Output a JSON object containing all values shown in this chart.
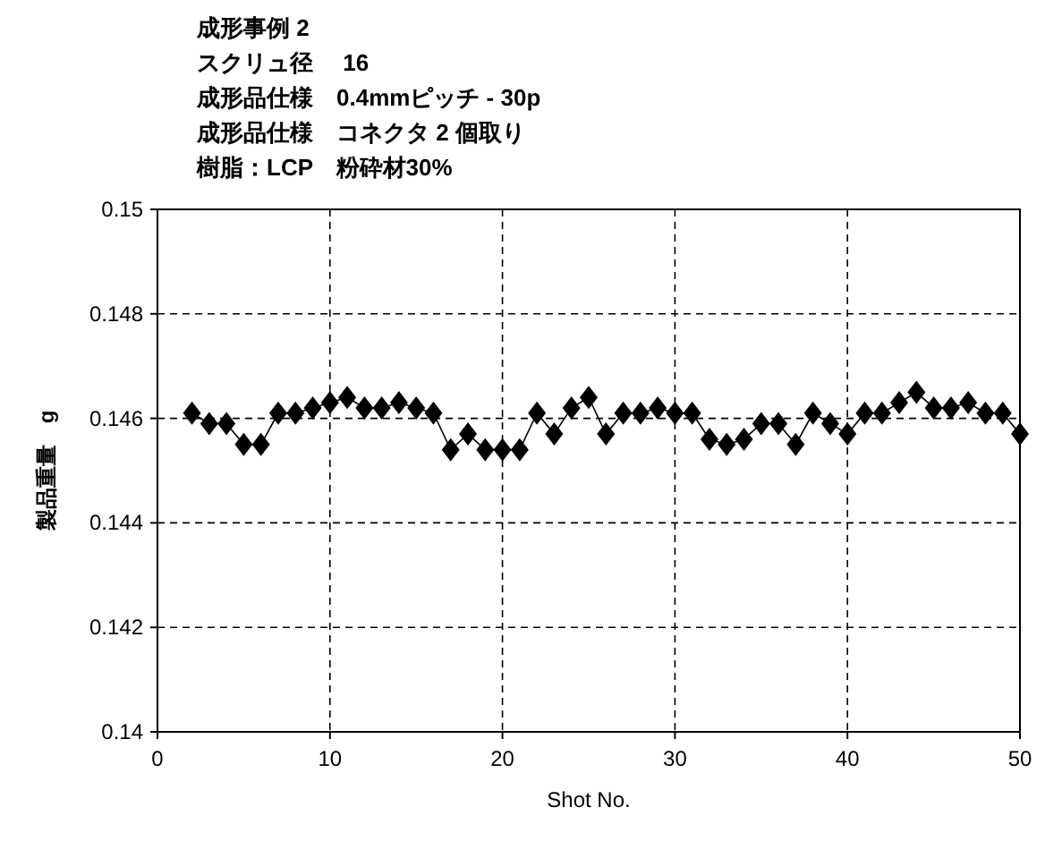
{
  "chart_data": {
    "type": "line",
    "title": "成形事例 2",
    "annotations": [
      "スクリュ径　 16",
      "成形品仕様　0.4mmピッチ - 30p",
      "成形品仕様　コネクタ 2 個取り",
      "樹脂：LCP　粉砕材30%"
    ],
    "xlabel": "Shot No.",
    "ylabel": "製品重量　g",
    "x": [
      2,
      3,
      4,
      5,
      6,
      7,
      8,
      9,
      10,
      11,
      12,
      13,
      14,
      15,
      16,
      17,
      18,
      19,
      20,
      21,
      22,
      23,
      24,
      25,
      26,
      27,
      28,
      29,
      30,
      31,
      32,
      33,
      34,
      35,
      36,
      37,
      38,
      39,
      40,
      41,
      42,
      43,
      44,
      45,
      46,
      47,
      48,
      49,
      50
    ],
    "series": [
      {
        "color": "#000000",
        "values": [
          0.1461,
          0.1459,
          0.1459,
          0.1455,
          0.1455,
          0.1461,
          0.1461,
          0.1462,
          0.1463,
          0.1464,
          0.1462,
          0.1462,
          0.1463,
          0.1462,
          0.1461,
          0.1454,
          0.1457,
          0.1454,
          0.1454,
          0.1454,
          0.1461,
          0.1457,
          0.1462,
          0.1464,
          0.1457,
          0.1461,
          0.1461,
          0.1462,
          0.1461,
          0.1461,
          0.1456,
          0.1455,
          0.1456,
          0.1459,
          0.1459,
          0.1455,
          0.1461,
          0.1459,
          0.1457,
          0.1461,
          0.1461,
          0.1463,
          0.1465,
          0.1462,
          0.1462,
          0.1463,
          0.1461,
          0.1461,
          0.1457
        ]
      }
    ],
    "xlim": [
      0,
      50
    ],
    "xticks": [
      0,
      10,
      20,
      30,
      40,
      50
    ],
    "ylim": [
      0.14,
      0.15
    ],
    "yticks": [
      0.14,
      0.142,
      0.144,
      0.146,
      0.148,
      0.15
    ],
    "grid": true,
    "marker": "diamond",
    "line_style": "solid"
  }
}
